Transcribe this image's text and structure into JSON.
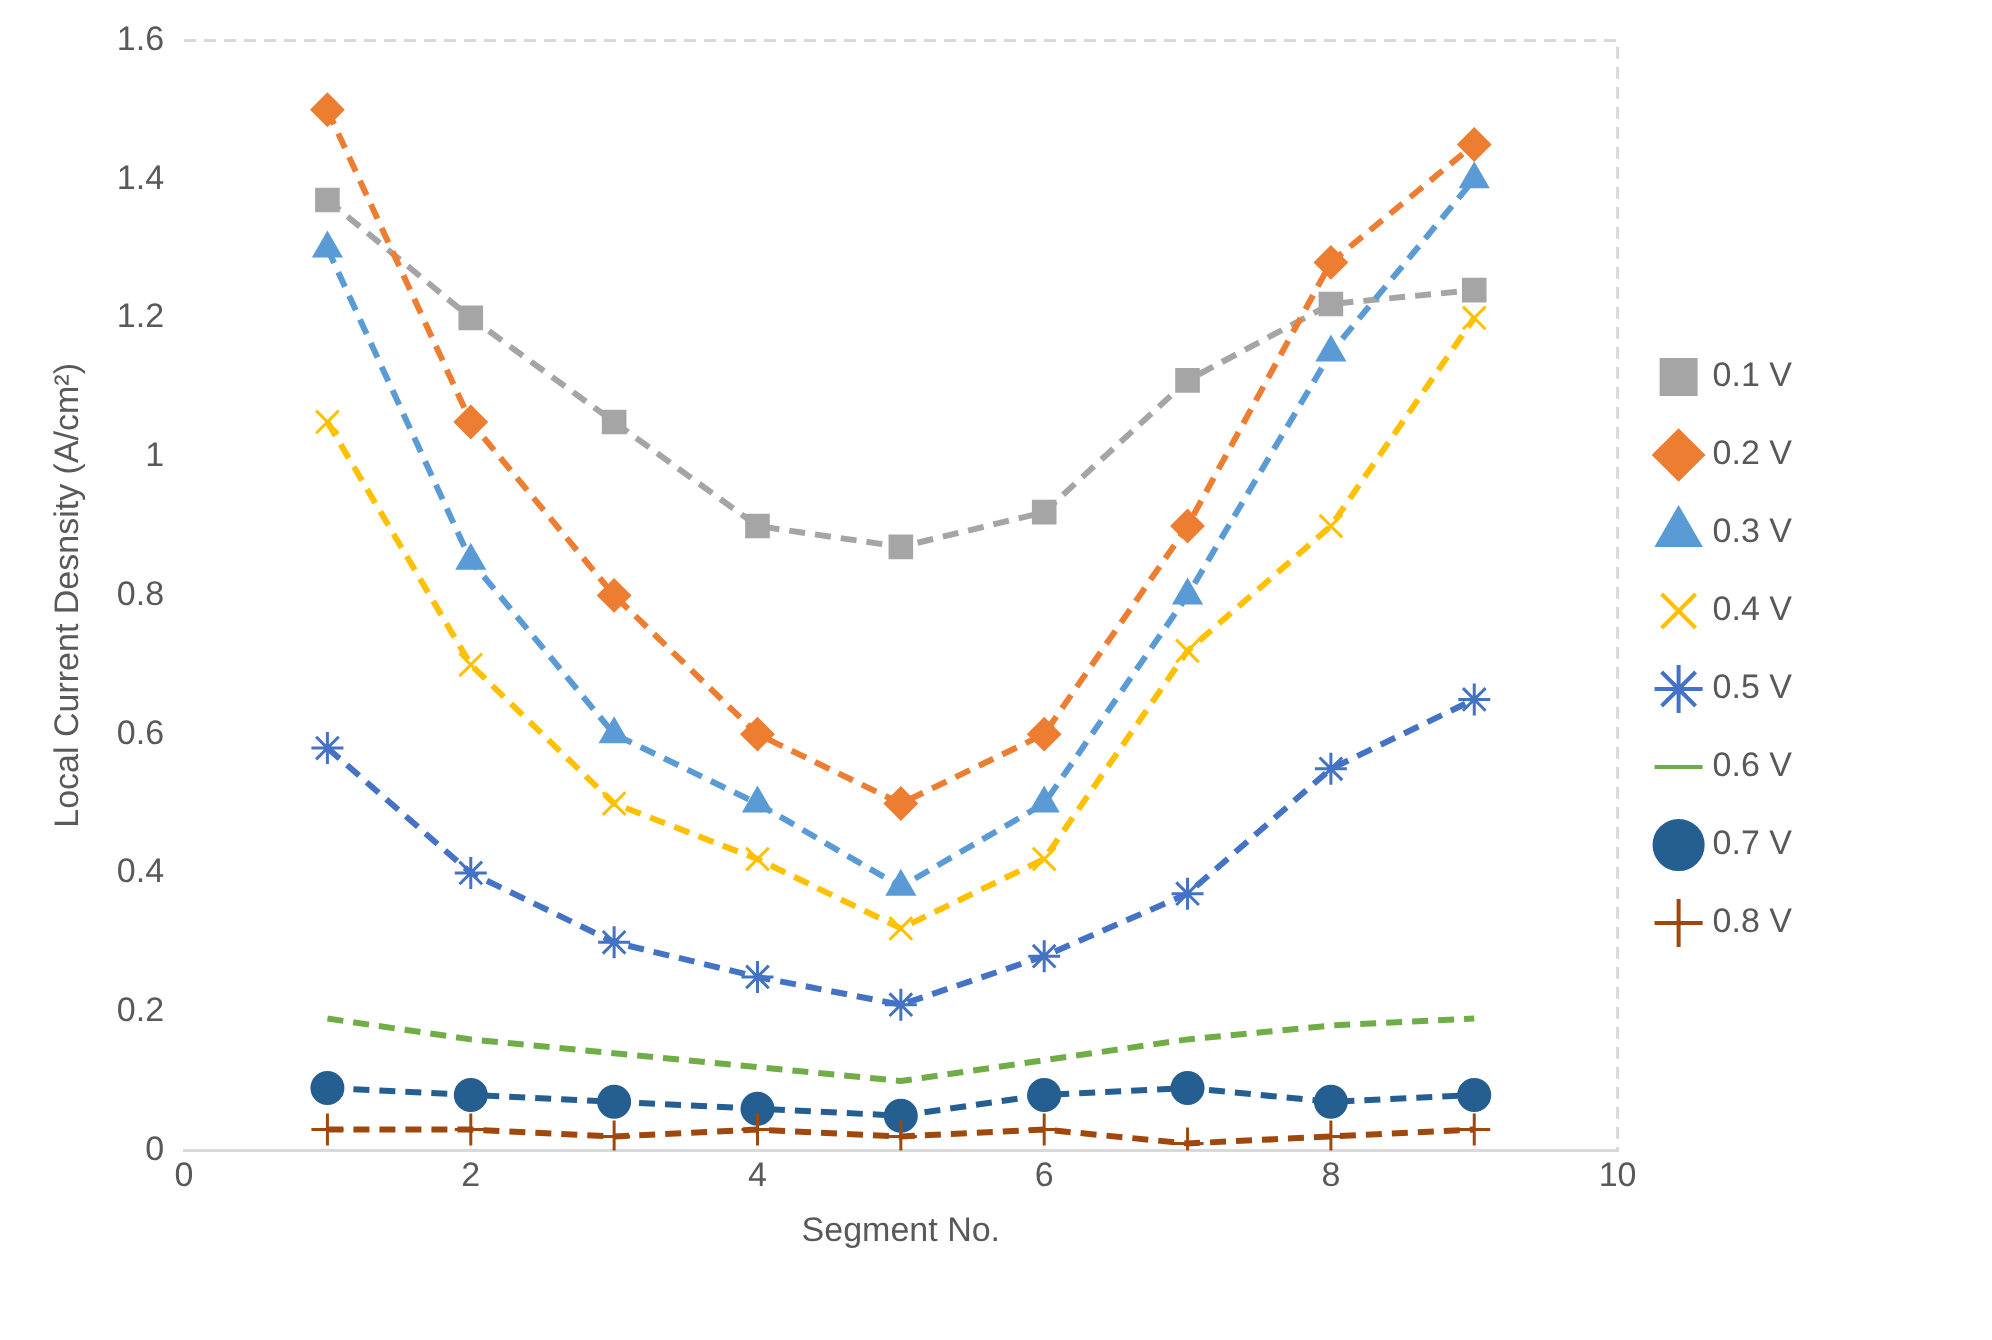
{
  "chart_data": {
    "type": "line",
    "xlabel": "Segment No.",
    "ylabel": "Local Current Desnsity (A/cm²)",
    "x": [
      1,
      2,
      3,
      4,
      5,
      6,
      7,
      8,
      9
    ],
    "xlim": [
      0,
      10
    ],
    "xticks": [
      0,
      2,
      4,
      6,
      8,
      10
    ],
    "ylim": [
      0,
      1.6
    ],
    "yticks": [
      0,
      0.2,
      0.4,
      0.6,
      0.8,
      1,
      1.2,
      1.4,
      1.6
    ],
    "grid": false,
    "legend": "right",
    "line_style": "dashed",
    "series": [
      {
        "name": "0.1 V",
        "color": "#a5a5a5",
        "marker": "square",
        "values": [
          1.37,
          1.2,
          1.05,
          0.9,
          0.87,
          0.92,
          1.11,
          1.22,
          1.24
        ]
      },
      {
        "name": "0.2 V",
        "color": "#ed7d31",
        "marker": "diamond",
        "values": [
          1.5,
          1.05,
          0.8,
          0.6,
          0.5,
          0.6,
          0.9,
          1.28,
          1.45
        ]
      },
      {
        "name": "0.3 V",
        "color": "#5b9bd5",
        "marker": "triangle",
        "values": [
          1.3,
          0.85,
          0.6,
          0.5,
          0.38,
          0.5,
          0.8,
          1.15,
          1.4
        ]
      },
      {
        "name": "0.4 V",
        "color": "#ffc000",
        "marker": "x",
        "values": [
          1.05,
          0.7,
          0.5,
          0.42,
          0.32,
          0.42,
          0.72,
          0.9,
          1.2
        ]
      },
      {
        "name": "0.5 V",
        "color": "#4472c4",
        "marker": "cross",
        "values": [
          0.58,
          0.4,
          0.3,
          0.25,
          0.21,
          0.28,
          0.37,
          0.55,
          0.65
        ]
      },
      {
        "name": "0.6 V",
        "color": "#70ad47",
        "marker": "none",
        "values": [
          0.19,
          0.16,
          0.14,
          0.12,
          0.1,
          0.13,
          0.16,
          0.18,
          0.19
        ]
      },
      {
        "name": "0.7 V",
        "color": "#255e91",
        "marker": "circle",
        "values": [
          0.09,
          0.08,
          0.07,
          0.06,
          0.05,
          0.08,
          0.09,
          0.07,
          0.08
        ]
      },
      {
        "name": "0.8 V",
        "color": "#9e480e",
        "marker": "plus",
        "values": [
          0.03,
          0.03,
          0.02,
          0.03,
          0.02,
          0.03,
          0.01,
          0.02,
          0.03
        ]
      }
    ]
  }
}
